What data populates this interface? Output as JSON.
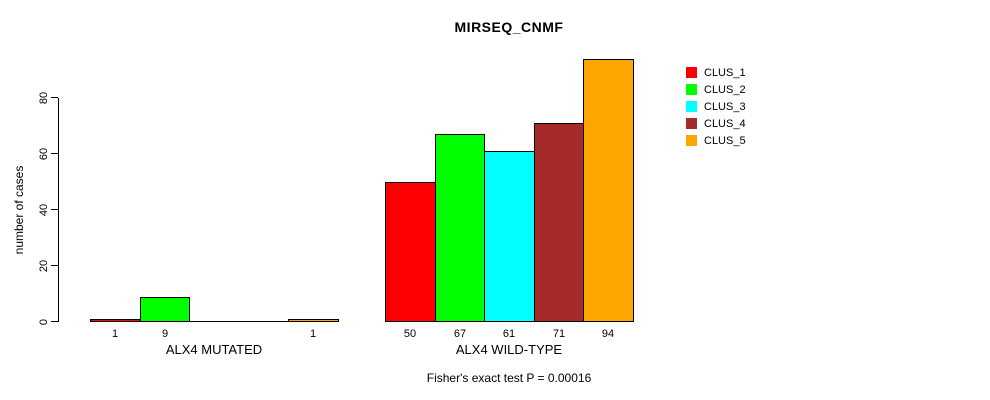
{
  "chart_data": {
    "type": "bar",
    "title": "MIRSEQ_CNMF",
    "ylabel": "number of cases",
    "xlabel": "",
    "ylim": [
      0,
      94
    ],
    "yticks": [
      0,
      20,
      40,
      60,
      80
    ],
    "grid": false,
    "legend_position": "right-outside",
    "series": [
      {
        "name": "CLUS_1",
        "color": "#FF0000"
      },
      {
        "name": "CLUS_2",
        "color": "#00FF00"
      },
      {
        "name": "CLUS_3",
        "color": "#00FFFF"
      },
      {
        "name": "CLUS_4",
        "color": "#A52A2A"
      },
      {
        "name": "CLUS_5",
        "color": "#FFA500"
      }
    ],
    "groups": [
      {
        "label": "ALX4 MUTATED",
        "values": [
          1,
          9,
          0,
          0,
          1
        ],
        "bar_labels": [
          "1",
          "9",
          "",
          "",
          "1"
        ]
      },
      {
        "label": "ALX4 WILD-TYPE",
        "values": [
          50,
          67,
          61,
          71,
          94
        ],
        "bar_labels": [
          "50",
          "67",
          "61",
          "71",
          "94"
        ]
      }
    ],
    "annotation": "Fisher's exact test P = 0.00016"
  }
}
